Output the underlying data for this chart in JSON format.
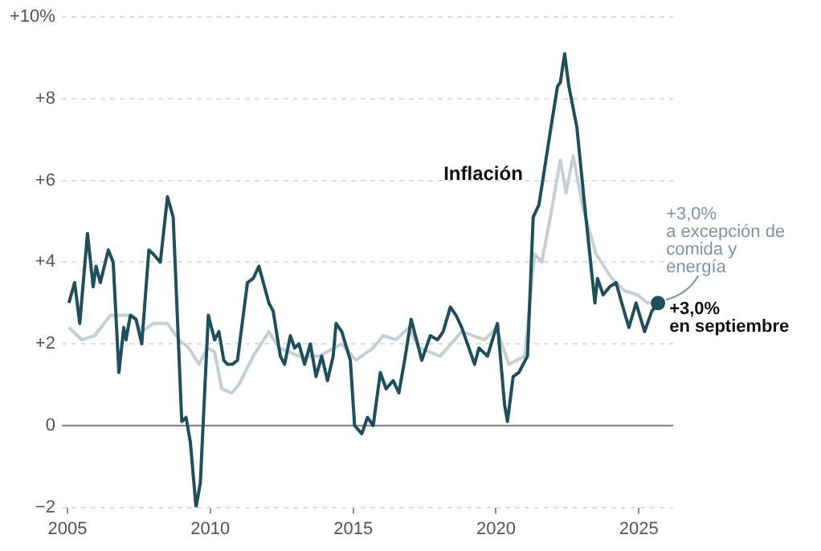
{
  "chart_data": {
    "type": "line",
    "xlim": [
      2004.8,
      2026.2
    ],
    "xticks": [
      2005,
      2010,
      2015,
      2020,
      2025
    ],
    "ylim": [
      -2,
      10
    ],
    "yticks": [
      {
        "value": -2,
        "label": "−2"
      },
      {
        "value": 0,
        "label": "0"
      },
      {
        "value": 2,
        "label": "+2"
      },
      {
        "value": 4,
        "label": "+4"
      },
      {
        "value": 6,
        "label": "+6"
      },
      {
        "value": 8,
        "label": "+8"
      },
      {
        "value": 10,
        "label": "+10%"
      }
    ],
    "grid": "y",
    "legend": false,
    "marker": "none",
    "line_style": "solid",
    "ref_lines": [
      {
        "axis": "y",
        "value": 0,
        "color": "#8a8a8a"
      }
    ],
    "series": [
      {
        "name": "Inflación",
        "color": "#1f4f5c",
        "x": [
          2005.05,
          2005.25,
          2005.43,
          2005.7,
          2005.9,
          2006.0,
          2006.15,
          2006.43,
          2006.6,
          2006.8,
          2006.97,
          2007.05,
          2007.2,
          2007.4,
          2007.6,
          2007.85,
          2008.0,
          2008.25,
          2008.5,
          2008.7,
          2009.0,
          2009.15,
          2009.3,
          2009.5,
          2009.65,
          2009.93,
          2010.15,
          2010.3,
          2010.47,
          2010.6,
          2010.78,
          2010.95,
          2011.3,
          2011.5,
          2011.7,
          2012.05,
          2012.2,
          2012.45,
          2012.6,
          2012.8,
          2012.95,
          2013.1,
          2013.3,
          2013.5,
          2013.7,
          2013.9,
          2014.1,
          2014.3,
          2014.4,
          2014.6,
          2014.9,
          2015.05,
          2015.3,
          2015.5,
          2015.7,
          2015.95,
          2016.15,
          2016.4,
          2016.6,
          2016.8,
          2017.03,
          2017.4,
          2017.7,
          2017.95,
          2018.15,
          2018.4,
          2018.6,
          2018.8,
          2019.05,
          2019.25,
          2019.4,
          2019.7,
          2020.05,
          2020.3,
          2020.4,
          2020.6,
          2020.8,
          2021.1,
          2021.3,
          2021.5,
          2021.9,
          2022.15,
          2022.25,
          2022.4,
          2022.55,
          2022.83,
          2023.1,
          2023.46,
          2023.55,
          2023.75,
          2023.98,
          2024.2,
          2024.4,
          2024.65,
          2024.9,
          2025.2,
          2025.45,
          2025.67
        ],
        "values": [
          3.0,
          3.5,
          2.5,
          4.7,
          3.4,
          3.9,
          3.5,
          4.3,
          4.0,
          1.3,
          2.4,
          2.1,
          2.7,
          2.6,
          2.0,
          4.3,
          4.2,
          4.0,
          5.6,
          5.1,
          0.1,
          0.2,
          -0.4,
          -2.0,
          -1.4,
          2.7,
          2.1,
          2.3,
          1.6,
          1.5,
          1.5,
          1.6,
          3.5,
          3.6,
          3.9,
          3.0,
          2.8,
          1.7,
          1.5,
          2.2,
          1.9,
          2.0,
          1.5,
          2.0,
          1.2,
          1.7,
          1.1,
          1.7,
          2.5,
          2.3,
          1.6,
          0.0,
          -0.2,
          0.2,
          0.0,
          1.3,
          0.9,
          1.1,
          0.8,
          1.6,
          2.6,
          1.6,
          2.2,
          2.1,
          2.3,
          2.9,
          2.7,
          2.4,
          1.9,
          1.5,
          1.9,
          1.7,
          2.5,
          0.5,
          0.1,
          1.2,
          1.3,
          1.7,
          5.1,
          5.4,
          7.2,
          8.3,
          8.4,
          9.1,
          8.3,
          7.3,
          5.4,
          3.0,
          3.6,
          3.2,
          3.4,
          3.5,
          3.0,
          2.4,
          3.0,
          2.3,
          2.8,
          3.0
        ]
      },
      {
        "color": "#c3d0d6",
        "x": [
          2005.05,
          2005.5,
          2005.95,
          2006.5,
          2006.8,
          2007.3,
          2007.6,
          2008.0,
          2008.5,
          2008.9,
          2009.25,
          2009.6,
          2009.9,
          2010.15,
          2010.4,
          2010.75,
          2011.0,
          2011.5,
          2012.05,
          2012.4,
          2013.1,
          2013.8,
          2014.6,
          2015.1,
          2015.7,
          2016.05,
          2016.5,
          2016.95,
          2017.3,
          2018.05,
          2018.8,
          2019.6,
          2020.0,
          2020.45,
          2021.0,
          2021.35,
          2021.6,
          2021.9,
          2022.25,
          2022.45,
          2022.7,
          2023.05,
          2023.5,
          2024.05,
          2024.5,
          2024.95,
          2025.3,
          2025.67
        ],
        "values": [
          2.4,
          2.1,
          2.2,
          2.7,
          2.7,
          2.7,
          2.3,
          2.5,
          2.5,
          2.1,
          1.9,
          1.5,
          1.9,
          1.8,
          0.9,
          0.8,
          1.0,
          1.7,
          2.3,
          1.9,
          1.7,
          1.7,
          2.0,
          1.6,
          1.9,
          2.2,
          2.1,
          2.4,
          1.9,
          1.7,
          2.3,
          2.1,
          2.4,
          1.5,
          1.7,
          4.2,
          4.0,
          5.1,
          6.5,
          5.7,
          6.6,
          5.3,
          4.2,
          3.6,
          3.3,
          3.2,
          3.0,
          3.0
        ]
      },
      {
        "type": "scatter",
        "marker": "circle",
        "color": "#1f4f5c",
        "x": [
          2025.67
        ],
        "values": [
          3.0
        ]
      }
    ],
    "annotations": [
      {
        "text": "+3,0%\nen septiembre",
        "x": 2025.67,
        "y": 3.0
      },
      {
        "text": "+3,0%\na excepción de\ncomida y\nenergía",
        "x": 2025.67,
        "y": 3.0
      }
    ]
  }
}
